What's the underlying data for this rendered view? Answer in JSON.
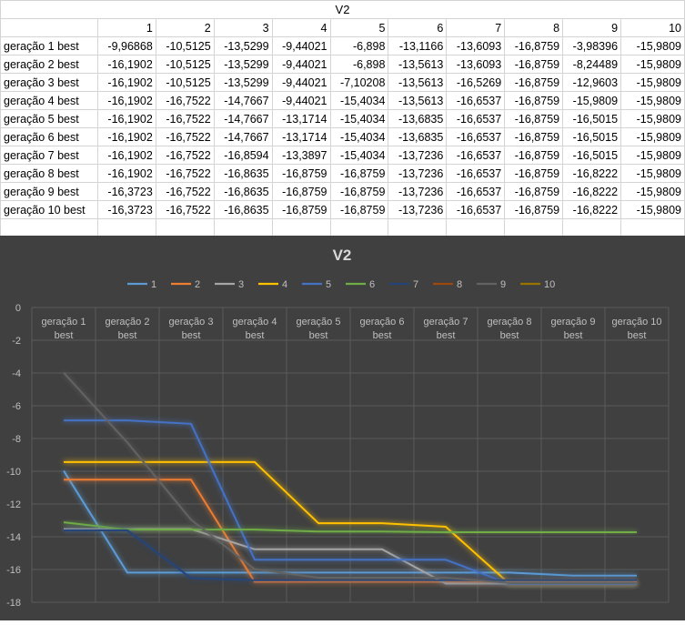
{
  "sheet": {
    "title": "V2",
    "col_headers": [
      "1",
      "2",
      "3",
      "4",
      "5",
      "6",
      "7",
      "8",
      "9",
      "10"
    ],
    "rows": [
      {
        "label": "geração 1 best",
        "values": [
          "-9,96868",
          "-10,5125",
          "-13,5299",
          "-9,44021",
          "-6,898",
          "-13,1166",
          "-13,6093",
          "-16,8759",
          "-3,98396",
          "-15,9809"
        ]
      },
      {
        "label": "geração 2 best",
        "values": [
          "-16,1902",
          "-10,5125",
          "-13,5299",
          "-9,44021",
          "-6,898",
          "-13,5613",
          "-13,6093",
          "-16,8759",
          "-8,24489",
          "-15,9809"
        ]
      },
      {
        "label": "geração 3 best",
        "values": [
          "-16,1902",
          "-10,5125",
          "-13,5299",
          "-9,44021",
          "-7,10208",
          "-13,5613",
          "-16,5269",
          "-16,8759",
          "-12,9603",
          "-15,9809"
        ]
      },
      {
        "label": "geração 4 best",
        "values": [
          "-16,1902",
          "-16,7522",
          "-14,7667",
          "-9,44021",
          "-15,4034",
          "-13,5613",
          "-16,6537",
          "-16,8759",
          "-15,9809",
          "-15,9809"
        ]
      },
      {
        "label": "geração 5 best",
        "values": [
          "-16,1902",
          "-16,7522",
          "-14,7667",
          "-13,1714",
          "-15,4034",
          "-13,6835",
          "-16,6537",
          "-16,8759",
          "-16,5015",
          "-15,9809"
        ]
      },
      {
        "label": "geração 6 best",
        "values": [
          "-16,1902",
          "-16,7522",
          "-14,7667",
          "-13,1714",
          "-15,4034",
          "-13,6835",
          "-16,6537",
          "-16,8759",
          "-16,5015",
          "-15,9809"
        ]
      },
      {
        "label": "geração 7 best",
        "values": [
          "-16,1902",
          "-16,7522",
          "-16,8594",
          "-13,3897",
          "-15,4034",
          "-13,7236",
          "-16,6537",
          "-16,8759",
          "-16,5015",
          "-15,9809"
        ]
      },
      {
        "label": "geração 8 best",
        "values": [
          "-16,1902",
          "-16,7522",
          "-16,8635",
          "-16,8759",
          "-16,8759",
          "-13,7236",
          "-16,6537",
          "-16,8759",
          "-16,8222",
          "-15,9809"
        ]
      },
      {
        "label": "geração 9 best",
        "values": [
          "-16,3723",
          "-16,7522",
          "-16,8635",
          "-16,8759",
          "-16,8759",
          "-13,7236",
          "-16,6537",
          "-16,8759",
          "-16,8222",
          "-15,9809"
        ]
      },
      {
        "label": "geração 10 best",
        "values": [
          "-16,3723",
          "-16,7522",
          "-16,8635",
          "-16,8759",
          "-16,8759",
          "-13,7236",
          "-16,6537",
          "-16,8759",
          "-16,8222",
          "-15,9809"
        ]
      }
    ]
  },
  "chart_data": {
    "type": "line",
    "title": "V2",
    "legend_position": "top",
    "grid": true,
    "ylim": [
      -18,
      0
    ],
    "yticks": [
      "0",
      "-2",
      "-4",
      "-6",
      "-8",
      "-10",
      "-12",
      "-14",
      "-16",
      "-18"
    ],
    "categories": [
      [
        "geração 1",
        "best"
      ],
      [
        "geração 2",
        "best"
      ],
      [
        "geração 3",
        "best"
      ],
      [
        "geração 4",
        "best"
      ],
      [
        "geração 5",
        "best"
      ],
      [
        "geração 6",
        "best"
      ],
      [
        "geração 7",
        "best"
      ],
      [
        "geração 8",
        "best"
      ],
      [
        "geração 9",
        "best"
      ],
      [
        "geração 10",
        "best"
      ]
    ],
    "series": [
      {
        "name": "1",
        "color": "#5b9bd5",
        "values": [
          -9.96868,
          -16.1902,
          -16.1902,
          -16.1902,
          -16.1902,
          -16.1902,
          -16.1902,
          -16.1902,
          -16.3723,
          -16.3723
        ]
      },
      {
        "name": "2",
        "color": "#ed7d31",
        "values": [
          -10.5125,
          -10.5125,
          -10.5125,
          -16.7522,
          -16.7522,
          -16.7522,
          -16.7522,
          -16.7522,
          -16.7522,
          -16.7522
        ]
      },
      {
        "name": "3",
        "color": "#a5a5a5",
        "values": [
          -13.5299,
          -13.5299,
          -13.5299,
          -14.7667,
          -14.7667,
          -14.7667,
          -16.8594,
          -16.8635,
          -16.8635,
          -16.8635
        ]
      },
      {
        "name": "4",
        "color": "#ffc000",
        "values": [
          -9.44021,
          -9.44021,
          -9.44021,
          -9.44021,
          -13.1714,
          -13.1714,
          -13.3897,
          -16.8759,
          -16.8759,
          -16.8759
        ]
      },
      {
        "name": "5",
        "color": "#4472c4",
        "values": [
          -6.898,
          -6.898,
          -7.10208,
          -15.4034,
          -15.4034,
          -15.4034,
          -15.4034,
          -16.8759,
          -16.8759,
          -16.8759
        ]
      },
      {
        "name": "6",
        "color": "#70ad47",
        "values": [
          -13.1166,
          -13.5613,
          -13.5613,
          -13.5613,
          -13.6835,
          -13.6835,
          -13.7236,
          -13.7236,
          -13.7236,
          -13.7236
        ]
      },
      {
        "name": "7",
        "color": "#264478",
        "values": [
          -13.6093,
          -13.6093,
          -16.5269,
          -16.6537,
          -16.6537,
          -16.6537,
          -16.6537,
          -16.6537,
          -16.6537,
          -16.6537
        ]
      },
      {
        "name": "8",
        "color": "#9e480e",
        "values": [
          -16.8759,
          -16.8759,
          -16.8759,
          -16.8759,
          -16.8759,
          -16.8759,
          -16.8759,
          -16.8759,
          -16.8759,
          -16.8759
        ]
      },
      {
        "name": "9",
        "color": "#636363",
        "values": [
          -3.98396,
          -8.24489,
          -12.9603,
          -15.9809,
          -16.5015,
          -16.5015,
          -16.5015,
          -16.8222,
          -16.8222,
          -16.8222
        ]
      },
      {
        "name": "10",
        "color": "#997300",
        "values": [
          -15.9809,
          -15.9809,
          -15.9809,
          -15.9809,
          -15.9809,
          -15.9809,
          -15.9809,
          -15.9809,
          -15.9809,
          -15.9809
        ]
      }
    ]
  }
}
